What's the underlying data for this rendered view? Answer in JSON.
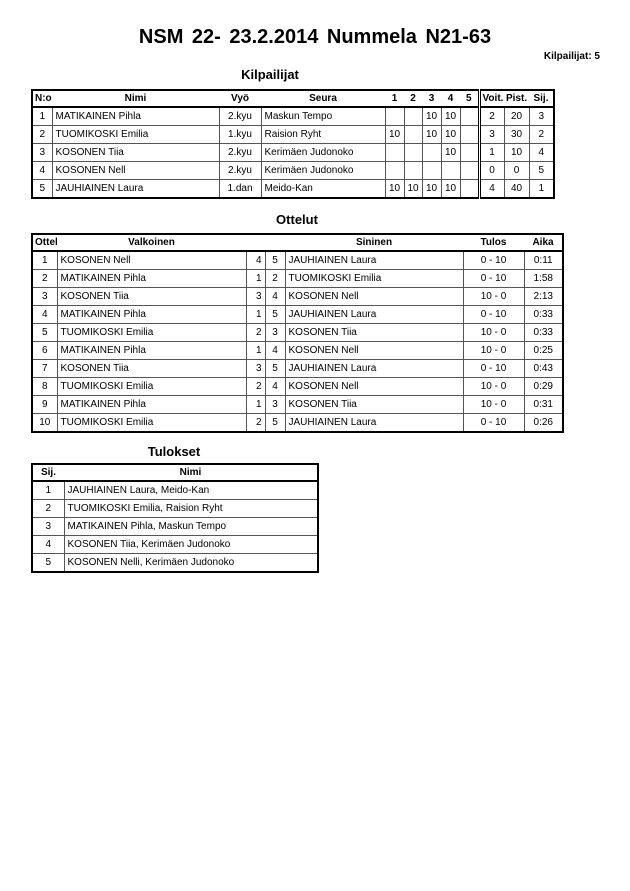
{
  "title": "NSM  22- 23.2.2014  Nummela   N21-63",
  "participants_count": "Kilpailijat: 5",
  "competitors": {
    "heading": "Kilpailijat",
    "headers": [
      "N:o",
      "Nimi",
      "Vyö",
      "Seura",
      "1",
      "2",
      "3",
      "4",
      "5",
      "Voit.",
      "Pist.",
      "Sij."
    ],
    "rows": [
      [
        "1",
        "MATIKAINEN Pihla",
        "2.kyu",
        "Maskun Tempo",
        "",
        "",
        "10",
        "10",
        "",
        "2",
        "20",
        "3"
      ],
      [
        "2",
        "TUOMIKOSKI Emilia",
        "1.kyu",
        "Raision Ryht",
        "10",
        "",
        "10",
        "10",
        "",
        "3",
        "30",
        "2"
      ],
      [
        "3",
        "KOSONEN Tiia",
        "2.kyu",
        "Kerimäen Judonoko",
        "",
        "",
        "",
        "10",
        "",
        "1",
        "10",
        "4"
      ],
      [
        "4",
        "KOSONEN Nell",
        "2.kyu",
        "Kerimäen Judonoko",
        "",
        "",
        "",
        "",
        "",
        "0",
        "0",
        "5"
      ],
      [
        "5",
        "JAUHIAINEN Laura",
        "1.dan",
        "Meido-Kan",
        "10",
        "10",
        "10",
        "10",
        "",
        "4",
        "40",
        "1"
      ]
    ]
  },
  "matches": {
    "heading": "Ottelut",
    "headers": [
      "Ottelu",
      "Valkoinen",
      "Sininen",
      "Tulos",
      "Aika"
    ],
    "rows": [
      [
        "1",
        "KOSONEN Nell",
        "4",
        "5",
        "JAUHIAINEN Laura",
        "0 - 10",
        "0:11"
      ],
      [
        "2",
        "MATIKAINEN Pihla",
        "1",
        "2",
        "TUOMIKOSKI Emilia",
        "0 - 10",
        "1:58"
      ],
      [
        "3",
        "KOSONEN Tiia",
        "3",
        "4",
        "KOSONEN Nell",
        "10 - 0",
        "2:13"
      ],
      [
        "4",
        "MATIKAINEN Pihla",
        "1",
        "5",
        "JAUHIAINEN Laura",
        "0 - 10",
        "0:33"
      ],
      [
        "5",
        "TUOMIKOSKI Emilia",
        "2",
        "3",
        "KOSONEN Tiia",
        "10 - 0",
        "0:33"
      ],
      [
        "6",
        "MATIKAINEN Pihla",
        "1",
        "4",
        "KOSONEN Nell",
        "10 - 0",
        "0:25"
      ],
      [
        "7",
        "KOSONEN Tiia",
        "3",
        "5",
        "JAUHIAINEN Laura",
        "0 - 10",
        "0:43"
      ],
      [
        "8",
        "TUOMIKOSKI Emilia",
        "2",
        "4",
        "KOSONEN Nell",
        "10 - 0",
        "0:29"
      ],
      [
        "9",
        "MATIKAINEN Pihla",
        "1",
        "3",
        "KOSONEN Tiia",
        "10 - 0",
        "0:31"
      ],
      [
        "10",
        "TUOMIKOSKI Emilia",
        "2",
        "5",
        "JAUHIAINEN Laura",
        "0 - 10",
        "0:26"
      ]
    ]
  },
  "results": {
    "heading": "Tulokset",
    "headers": [
      "Sij.",
      "Nimi"
    ],
    "rows": [
      [
        "1",
        "JAUHIAINEN Laura, Meido-Kan"
      ],
      [
        "2",
        "TUOMIKOSKI Emilia, Raision Ryht"
      ],
      [
        "3",
        "MATIKAINEN Pihla, Maskun Tempo"
      ],
      [
        "4",
        "KOSONEN Tiia, Kerimäen Judonoko"
      ],
      [
        "5",
        "KOSONEN Nelli, Kerimäen Judonoko"
      ]
    ]
  }
}
